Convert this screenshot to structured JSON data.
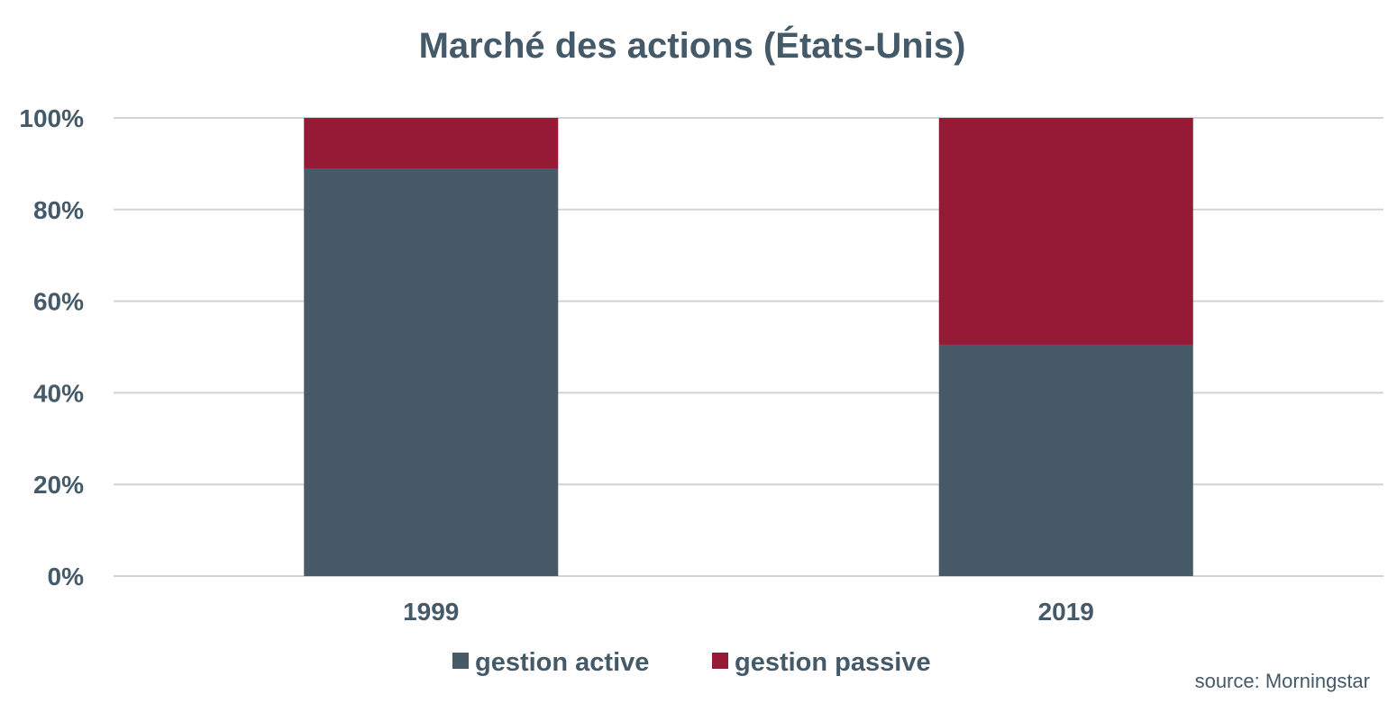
{
  "chart_data": {
    "type": "bar",
    "stacked": true,
    "title": "Marché des actions (États-Unis)",
    "categories": [
      "1999",
      "2019"
    ],
    "series": [
      {
        "name": "gestion active",
        "values": [
          89,
          50.5
        ],
        "color": "#465a68"
      },
      {
        "name": "gestion passive",
        "values": [
          11,
          49.5
        ],
        "color": "#961936"
      }
    ],
    "ylim": [
      0,
      100
    ],
    "yticks": [
      0,
      20,
      40,
      60,
      80,
      100
    ],
    "ytick_labels": [
      "0%",
      "20%",
      "40%",
      "60%",
      "80%",
      "100%"
    ],
    "xlabel": "",
    "ylabel": "",
    "grid": true,
    "legend_position": "bottom"
  },
  "source": "source: Morningstar"
}
